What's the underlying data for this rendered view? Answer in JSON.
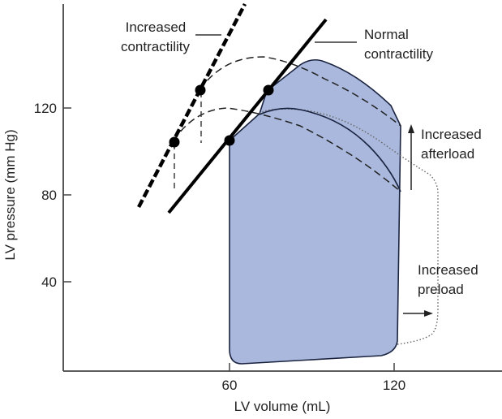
{
  "chart_data": {
    "type": "line",
    "title": "",
    "xlabel": "LV volume (mL)",
    "ylabel": "LV pressure (mm Hg)",
    "xlim": [
      0,
      150
    ],
    "ylim": [
      0,
      150
    ],
    "x_ticks": [
      60,
      120
    ],
    "y_ticks": [
      40,
      80,
      120
    ],
    "grid": false,
    "fill_color": "#a9b8dc",
    "series": [
      {
        "name": "Normal pressure-volume loop",
        "style": "solid-filled",
        "points": [
          [
            61,
            105
          ],
          [
            61,
            5
          ],
          [
            64,
            3
          ],
          [
            120,
            9
          ],
          [
            125,
            15
          ],
          [
            125,
            112
          ],
          [
            120,
            125
          ],
          [
            96,
            142
          ],
          [
            90,
            140
          ],
          [
            75,
            128
          ],
          [
            61,
            105
          ]
        ]
      },
      {
        "name": "Increased preload loop",
        "style": "dotted",
        "points": [
          [
            125,
            12
          ],
          [
            136,
            16
          ],
          [
            137,
            20
          ],
          [
            137,
            80
          ],
          [
            134,
            85
          ],
          [
            130,
            95
          ],
          [
            120,
            105
          ],
          [
            100,
            120
          ],
          [
            85,
            122
          ],
          [
            74,
            120
          ]
        ]
      },
      {
        "name": "Increased afterload ejection",
        "style": "solid",
        "points": [
          [
            74,
            117
          ],
          [
            85,
            117
          ],
          [
            100,
            110
          ],
          [
            115,
            95
          ],
          [
            125,
            80
          ]
        ]
      },
      {
        "name": "Increased contractility ejection (upper)",
        "style": "dashed",
        "points": [
          [
            50,
            129
          ],
          [
            58,
            138
          ],
          [
            70,
            142
          ],
          [
            90,
            138
          ],
          [
            110,
            124
          ],
          [
            125,
            112
          ]
        ]
      },
      {
        "name": "Increased contractility ejection (lower)",
        "style": "dashed",
        "points": [
          [
            40,
            105
          ],
          [
            48,
            116
          ],
          [
            60,
            119
          ],
          [
            75,
            117
          ],
          [
            100,
            104
          ],
          [
            125,
            80
          ]
        ]
      }
    ],
    "esp_lines": [
      {
        "name": "Normal contractility",
        "style": "solid",
        "points": [
          [
            38,
            72
          ],
          [
            95,
            165
          ]
        ]
      },
      {
        "name": "Increased contractility",
        "style": "heavy-dashed",
        "points": [
          [
            27,
            76
          ],
          [
            65,
            170
          ]
        ]
      }
    ],
    "markers": [
      {
        "x": 40.5,
        "y": 105
      },
      {
        "x": 49.5,
        "y": 129
      },
      {
        "x": 61,
        "y": 105
      },
      {
        "x": 74.5,
        "y": 129
      }
    ],
    "annotations": [
      {
        "text_lines": [
          "Increased",
          "contractility"
        ],
        "key": "increased_contractility"
      },
      {
        "text_lines": [
          "Normal",
          "contractility"
        ],
        "key": "normal_contractility"
      },
      {
        "text_lines": [
          "Increased",
          "afterload"
        ],
        "key": "increased_afterload"
      },
      {
        "text_lines": [
          "Increased",
          "preload"
        ],
        "key": "increased_preload"
      }
    ]
  },
  "labels": {
    "increased_contractility": [
      "Increased",
      "contractility"
    ],
    "normal_contractility": [
      "Normal",
      "contractility"
    ],
    "increased_afterload": [
      "Increased",
      "afterload"
    ],
    "increased_preload": [
      "Increased",
      "preload"
    ],
    "xlabel": "LV volume (mL)",
    "ylabel": "LV pressure (mm Hg)",
    "x_tick_60": "60",
    "x_tick_120": "120",
    "y_tick_40": "40",
    "y_tick_80": "80",
    "y_tick_120": "120"
  }
}
